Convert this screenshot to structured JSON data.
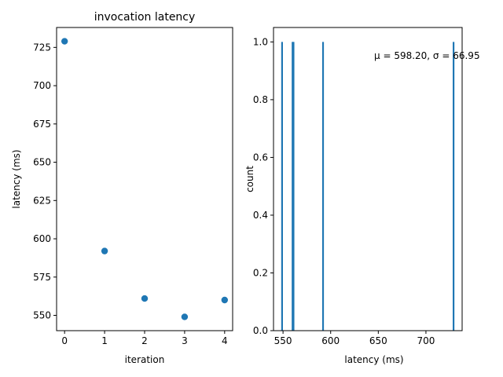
{
  "chart_data": [
    {
      "type": "scatter",
      "title": "invocation latency",
      "xlabel": "iteration",
      "ylabel": "latency (ms)",
      "xlim": [
        -0.2,
        4.2
      ],
      "ylim": [
        540,
        738
      ],
      "xticks": [
        0,
        1,
        2,
        3,
        4
      ],
      "yticks": [
        550,
        575,
        600,
        625,
        650,
        675,
        700,
        725
      ],
      "grid": false,
      "color": "#1f77b4",
      "points": [
        {
          "x": 0,
          "y": 729
        },
        {
          "x": 1,
          "y": 592
        },
        {
          "x": 2,
          "y": 561
        },
        {
          "x": 3,
          "y": 549
        },
        {
          "x": 4,
          "y": 560
        }
      ]
    },
    {
      "type": "bar",
      "title": "",
      "xlabel": "latency (ms)",
      "ylabel": "count",
      "xlim": [
        540,
        738
      ],
      "ylim": [
        0,
        1.05
      ],
      "xticks": [
        550,
        600,
        650,
        700
      ],
      "yticks": [
        0.0,
        0.2,
        0.4,
        0.6,
        0.8,
        1.0
      ],
      "ytick_labels": [
        "0.0",
        "0.2",
        "0.4",
        "0.6",
        "0.8",
        "1.0"
      ],
      "grid": false,
      "color": "#1f77b4",
      "bin_width": 1.8,
      "bars": [
        {
          "x": 549,
          "count": 1
        },
        {
          "x": 560,
          "count": 1
        },
        {
          "x": 561,
          "count": 1
        },
        {
          "x": 592,
          "count": 1
        },
        {
          "x": 729,
          "count": 1
        }
      ],
      "annotation": "μ = 598.20, σ = 66.95"
    }
  ]
}
